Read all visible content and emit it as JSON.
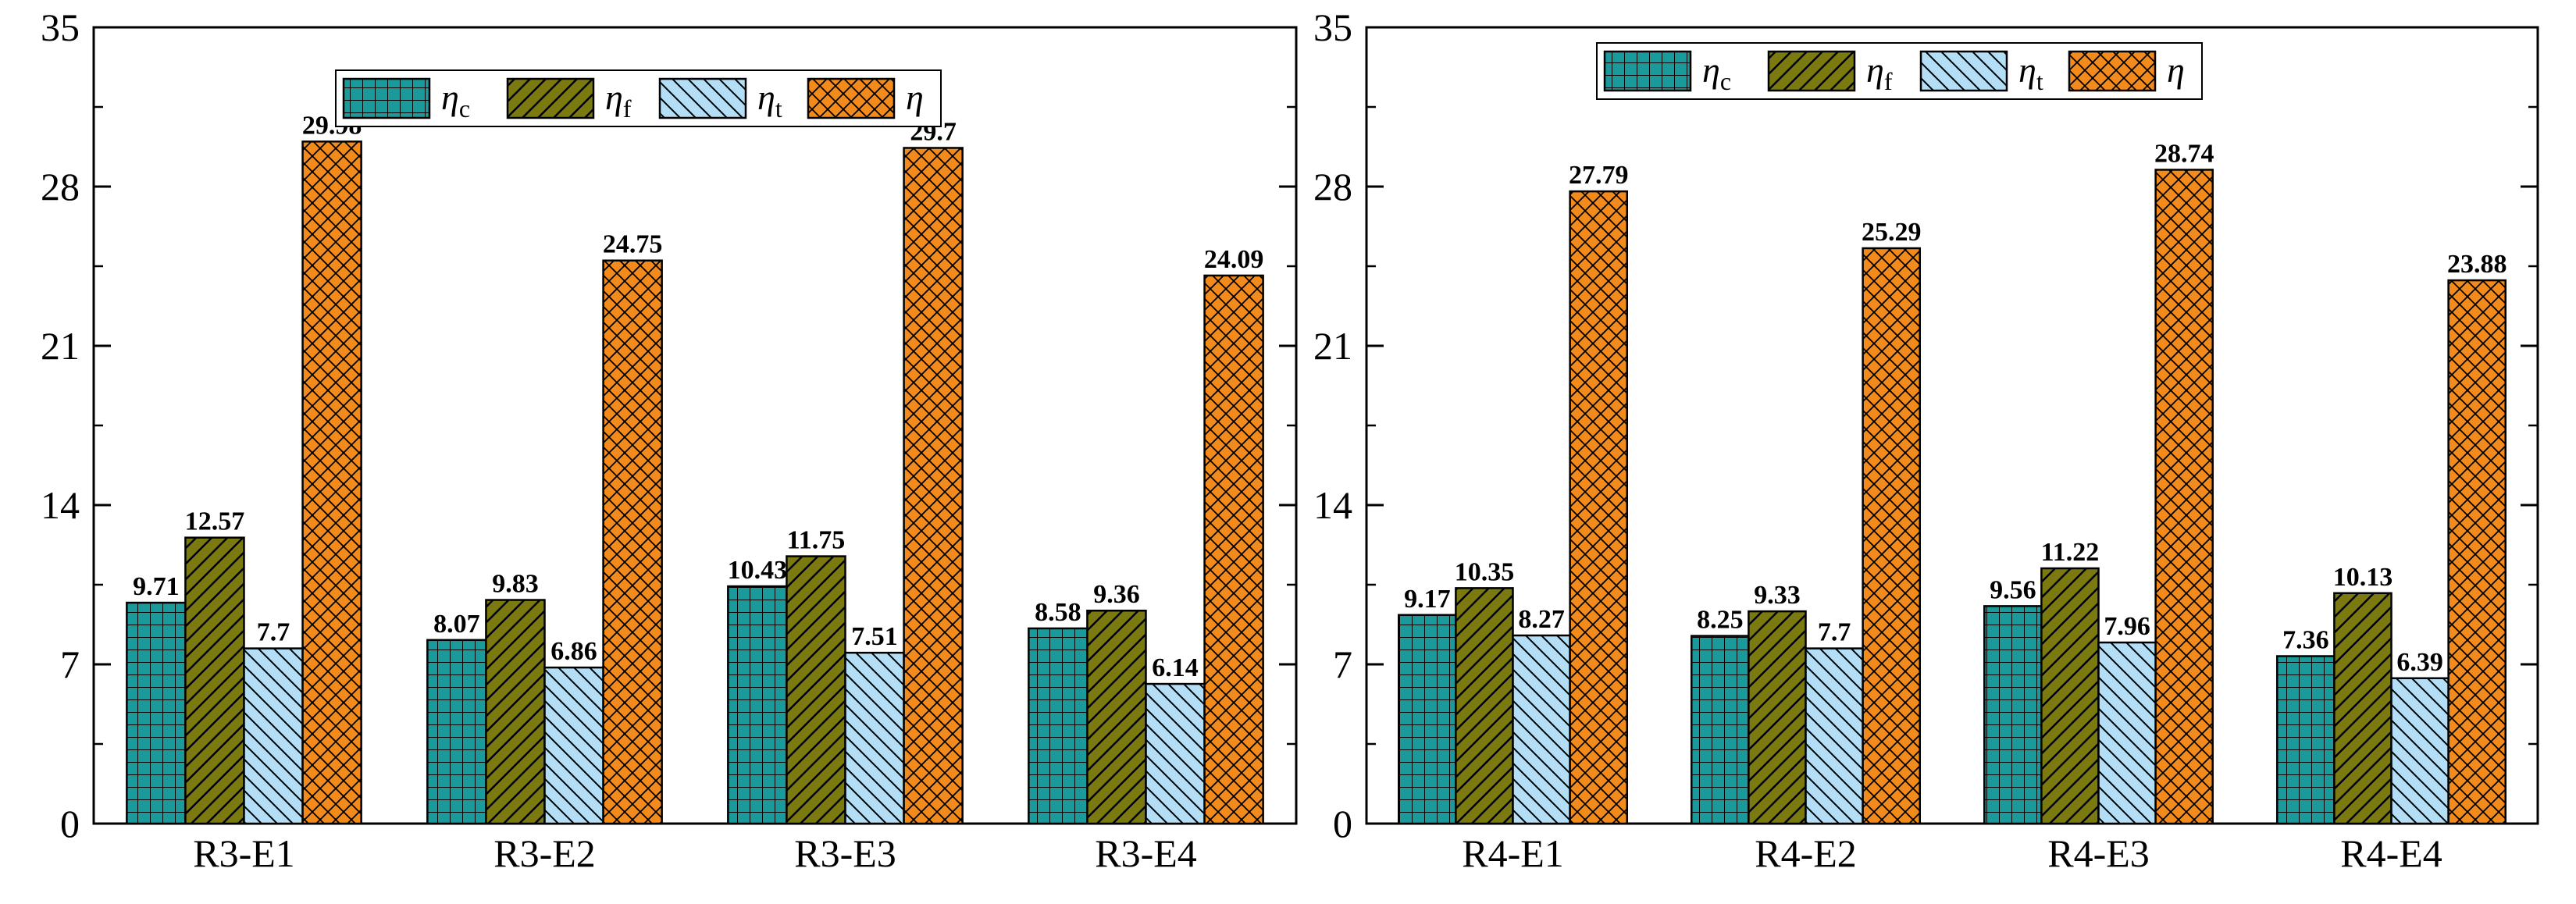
{
  "chart_data": [
    {
      "type": "bar",
      "categories": [
        "R3-E1",
        "R3-E2",
        "R3-E3",
        "R3-E4"
      ],
      "series": [
        {
          "name": "ηc",
          "symbol": "η",
          "sub": "c",
          "values": [
            9.71,
            8.07,
            10.43,
            8.58
          ],
          "labels": [
            "9.71",
            "8.07",
            "10.43",
            "8.58"
          ]
        },
        {
          "name": "ηf",
          "symbol": "η",
          "sub": "f",
          "values": [
            12.57,
            9.83,
            11.75,
            9.36
          ],
          "labels": [
            "12.57",
            "9.83",
            "11.75",
            "9.36"
          ]
        },
        {
          "name": "ηt",
          "symbol": "η",
          "sub": "t",
          "values": [
            7.7,
            6.86,
            7.51,
            6.14
          ],
          "labels": [
            "7.7",
            "6.86",
            "7.51",
            "6.14"
          ]
        },
        {
          "name": "η",
          "symbol": "η",
          "sub": "",
          "values": [
            29.98,
            24.75,
            29.7,
            24.09
          ],
          "labels": [
            "29.98",
            "24.75",
            "29.7",
            "24.09"
          ]
        }
      ],
      "ylim": [
        0,
        35
      ],
      "yticks": [
        "0",
        "7",
        "14",
        "21",
        "28",
        "35"
      ],
      "xlabel": "",
      "ylabel": "",
      "legend_position": "top-center"
    },
    {
      "type": "bar",
      "categories": [
        "R4-E1",
        "R4-E2",
        "R4-E3",
        "R4-E4"
      ],
      "series": [
        {
          "name": "ηc",
          "symbol": "η",
          "sub": "c",
          "values": [
            9.17,
            8.25,
            9.56,
            7.36
          ],
          "labels": [
            "9.17",
            "8.25",
            "9.56",
            "7.36"
          ]
        },
        {
          "name": "ηf",
          "symbol": "η",
          "sub": "f",
          "values": [
            10.35,
            9.33,
            11.22,
            10.13
          ],
          "labels": [
            "10.35",
            "9.33",
            "11.22",
            "10.13"
          ]
        },
        {
          "name": "ηt",
          "symbol": "η",
          "sub": "t",
          "values": [
            8.27,
            7.7,
            7.96,
            6.39
          ],
          "labels": [
            "8.27",
            "7.7",
            "7.96",
            "6.39"
          ]
        },
        {
          "name": "η",
          "symbol": "η",
          "sub": "",
          "values": [
            27.79,
            25.29,
            28.74,
            23.88
          ],
          "labels": [
            "27.79",
            "25.29",
            "28.74",
            "23.88"
          ]
        }
      ],
      "ylim": [
        0,
        35
      ],
      "yticks": [
        "0",
        "7",
        "14",
        "21",
        "28",
        "35"
      ],
      "xlabel": "",
      "ylabel": "",
      "legend_position": "top-center"
    }
  ],
  "colors": {
    "ηc": "#1a9a9a",
    "ηf": "#7a7a10",
    "ηt": "#b3def5",
    "η": "#f28a1c",
    "axis": "#000000"
  }
}
